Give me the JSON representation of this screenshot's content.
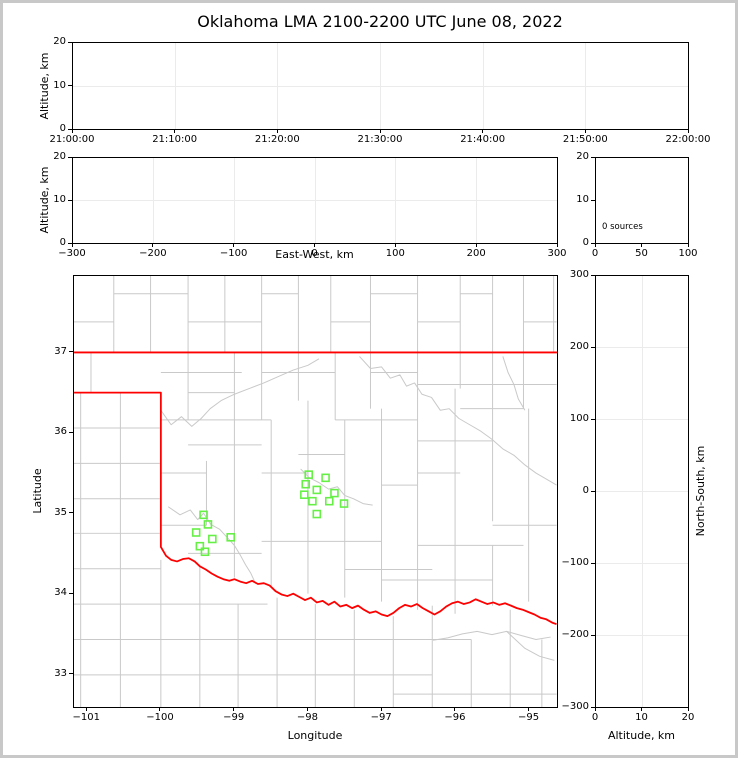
{
  "title": "Oklahoma LMA 2100-2200 UTC June 08, 2022",
  "colors": {
    "figure_frame": "#c8c8c8",
    "axis": "#000000",
    "grid_line": "#ebebeb",
    "county_line": "#c9c9c9",
    "state_border": "#ff0000",
    "station_marker": "#66f046"
  },
  "panels": {
    "time_height": {
      "ylabel": "Altitude, km",
      "ytick_labels": [
        "0",
        "10",
        "20"
      ],
      "xtick_labels": [
        "21:00:00",
        "21:10:00",
        "21:20:00",
        "21:30:00",
        "21:40:00",
        "21:50:00",
        "22:00:00"
      ]
    },
    "ew_height": {
      "ylabel": "Altitude, km",
      "xlabel": "East-West, km",
      "ytick_labels": [
        "0",
        "10",
        "20"
      ],
      "xtick_labels": [
        "−300",
        "−200",
        "−100",
        "0",
        "100",
        "200",
        "300"
      ]
    },
    "histogram": {
      "annotation": "0 sources",
      "ytick_labels": [
        "0",
        "10",
        "20"
      ],
      "xtick_labels": [
        "0",
        "50",
        "100"
      ]
    },
    "plan_view": {
      "xlabel": "Longitude",
      "ylabel": "Latitude",
      "xtick_labels": [
        "−101",
        "−100",
        "−99",
        "−98",
        "−97",
        "−96",
        "−95"
      ],
      "ytick_labels": [
        "33",
        "34",
        "35",
        "36",
        "37"
      ]
    },
    "ns_height": {
      "xlabel": "Altitude, km",
      "right_label": "North-South, km",
      "xtick_labels": [
        "0",
        "10",
        "20"
      ],
      "ytick_labels": [
        "−300",
        "−200",
        "−100",
        "0",
        "100",
        "200",
        "300"
      ]
    }
  },
  "chart_data": [
    {
      "id": "time_height",
      "type": "scatter",
      "title": "Oklahoma LMA 2100-2200 UTC June 08, 2022",
      "ylabel": "Altitude, km",
      "ylim": [
        0,
        20
      ],
      "x_ticks": [
        "21:00:00",
        "21:10:00",
        "21:20:00",
        "21:30:00",
        "21:40:00",
        "21:50:00",
        "22:00:00"
      ],
      "points": []
    },
    {
      "id": "ew_height",
      "type": "scatter",
      "xlabel": "East-West, km",
      "ylabel": "Altitude, km",
      "xlim": [
        -300,
        300
      ],
      "ylim": [
        0,
        20
      ],
      "points": []
    },
    {
      "id": "altitude_histogram",
      "type": "bar",
      "annotation": "0 sources",
      "xlim": [
        0,
        100
      ],
      "ylim": [
        0,
        20
      ],
      "values": []
    },
    {
      "id": "plan_view",
      "type": "scatter",
      "xlabel": "Longitude",
      "ylabel": "Latitude",
      "lon_lim": [
        -101.18,
        -94.615
      ],
      "lat_lim": [
        32.59,
        37.95
      ],
      "stations": [
        [
          -99.42,
          34.98
        ],
        [
          -99.52,
          34.76
        ],
        [
          -99.36,
          34.86
        ],
        [
          -99.3,
          34.68
        ],
        [
          -99.47,
          34.59
        ],
        [
          -99.4,
          34.52
        ],
        [
          -99.05,
          34.7
        ],
        [
          -97.99,
          35.48
        ],
        [
          -97.76,
          35.44
        ],
        [
          -98.03,
          35.36
        ],
        [
          -97.88,
          35.29
        ],
        [
          -97.64,
          35.25
        ],
        [
          -98.05,
          35.23
        ],
        [
          -97.94,
          35.15
        ],
        [
          -97.71,
          35.15
        ],
        [
          -97.51,
          35.12
        ],
        [
          -97.88,
          34.99
        ]
      ],
      "state_border": [
        [
          [
            -101.18,
            37.0
          ],
          [
            -94.615,
            37.0
          ]
        ],
        [
          [
            -101.18,
            36.5
          ],
          [
            -100.0,
            36.5
          ],
          [
            -100.0,
            34.58
          ],
          [
            -99.93,
            34.47
          ],
          [
            -99.86,
            34.42
          ],
          [
            -99.78,
            34.4
          ],
          [
            -99.7,
            34.43
          ],
          [
            -99.62,
            34.44
          ],
          [
            -99.54,
            34.4
          ],
          [
            -99.47,
            34.34
          ],
          [
            -99.39,
            34.3
          ],
          [
            -99.31,
            34.25
          ],
          [
            -99.23,
            34.21
          ],
          [
            -99.15,
            34.18
          ],
          [
            -99.07,
            34.16
          ],
          [
            -99.0,
            34.18
          ],
          [
            -98.92,
            34.15
          ],
          [
            -98.84,
            34.13
          ],
          [
            -98.76,
            34.16
          ],
          [
            -98.68,
            34.12
          ],
          [
            -98.6,
            34.13
          ],
          [
            -98.52,
            34.1
          ],
          [
            -98.44,
            34.03
          ],
          [
            -98.36,
            33.99
          ],
          [
            -98.28,
            33.97
          ],
          [
            -98.2,
            34.0
          ],
          [
            -98.12,
            33.96
          ],
          [
            -98.04,
            33.92
          ],
          [
            -97.96,
            33.95
          ],
          [
            -97.88,
            33.89
          ],
          [
            -97.8,
            33.91
          ],
          [
            -97.72,
            33.86
          ],
          [
            -97.64,
            33.9
          ],
          [
            -97.56,
            33.84
          ],
          [
            -97.48,
            33.86
          ],
          [
            -97.4,
            33.82
          ],
          [
            -97.32,
            33.85
          ],
          [
            -97.24,
            33.8
          ],
          [
            -97.16,
            33.76
          ],
          [
            -97.08,
            33.78
          ],
          [
            -97.0,
            33.74
          ],
          [
            -96.92,
            33.72
          ],
          [
            -96.84,
            33.76
          ],
          [
            -96.76,
            33.82
          ],
          [
            -96.68,
            33.86
          ],
          [
            -96.6,
            33.84
          ],
          [
            -96.52,
            33.87
          ],
          [
            -96.44,
            33.82
          ],
          [
            -96.36,
            33.78
          ],
          [
            -96.28,
            33.74
          ],
          [
            -96.2,
            33.78
          ],
          [
            -96.12,
            33.84
          ],
          [
            -96.04,
            33.88
          ],
          [
            -95.96,
            33.9
          ],
          [
            -95.88,
            33.87
          ],
          [
            -95.8,
            33.89
          ],
          [
            -95.72,
            33.93
          ],
          [
            -95.64,
            33.9
          ],
          [
            -95.56,
            33.87
          ],
          [
            -95.48,
            33.89
          ],
          [
            -95.4,
            33.86
          ],
          [
            -95.32,
            33.88
          ],
          [
            -95.24,
            33.85
          ],
          [
            -95.16,
            33.82
          ],
          [
            -95.08,
            33.8
          ],
          [
            -95.0,
            33.77
          ],
          [
            -94.92,
            33.74
          ],
          [
            -94.84,
            33.7
          ],
          [
            -94.76,
            33.68
          ],
          [
            -94.68,
            33.64
          ],
          [
            -94.62,
            33.62
          ]
        ]
      ],
      "county_v": [
        [
          -100.64,
          37.0,
          37.95
        ],
        [
          -100.14,
          37.0,
          37.95
        ],
        [
          -99.63,
          37.0,
          37.95
        ],
        [
          -99.13,
          37.0,
          37.95
        ],
        [
          -98.63,
          37.0,
          37.95
        ],
        [
          -98.13,
          37.0,
          37.95
        ],
        [
          -97.69,
          37.0,
          37.95
        ],
        [
          -97.15,
          37.0,
          37.95
        ],
        [
          -96.51,
          37.0,
          37.95
        ],
        [
          -95.93,
          37.0,
          37.95
        ],
        [
          -95.49,
          37.0,
          37.95
        ],
        [
          -95.07,
          37.0,
          37.95
        ],
        [
          -94.66,
          37.0,
          37.95
        ],
        [
          -100.95,
          36.5,
          37.0
        ],
        [
          -99.63,
          36.16,
          37.0
        ],
        [
          -99.38,
          34.85,
          35.65
        ],
        [
          -99.0,
          34.2,
          37.0
        ],
        [
          -98.63,
          36.16,
          37.0
        ],
        [
          -98.5,
          34.1,
          36.16
        ],
        [
          -98.13,
          36.4,
          37.0
        ],
        [
          -98.0,
          34.0,
          36.4
        ],
        [
          -97.63,
          36.16,
          37.0
        ],
        [
          -97.5,
          33.95,
          36.16
        ],
        [
          -97.15,
          36.3,
          37.0
        ],
        [
          -97.0,
          33.9,
          36.3
        ],
        [
          -96.51,
          33.8,
          37.0
        ],
        [
          -96.0,
          33.75,
          36.55
        ],
        [
          -95.93,
          36.55,
          37.0
        ],
        [
          -95.49,
          34.9,
          37.0
        ],
        [
          -95.49,
          33.85,
          34.6
        ],
        [
          -95.07,
          36.3,
          37.0
        ],
        [
          -95.0,
          33.9,
          36.3
        ],
        [
          -101.09,
          32.59,
          36.5
        ],
        [
          -100.55,
          32.59,
          36.5
        ],
        [
          -100.0,
          32.59,
          34.42
        ],
        [
          -99.47,
          32.59,
          34.34
        ],
        [
          -98.95,
          32.59,
          33.87
        ],
        [
          -98.42,
          32.59,
          33.95
        ],
        [
          -97.9,
          32.59,
          33.87
        ],
        [
          -97.37,
          32.59,
          33.8
        ],
        [
          -96.84,
          32.59,
          33.72
        ],
        [
          -96.31,
          32.59,
          33.85
        ],
        [
          -95.78,
          32.59,
          33.43
        ],
        [
          -95.25,
          32.59,
          33.8
        ],
        [
          -94.82,
          32.59,
          33.43
        ]
      ],
      "county_h": [
        [
          37.38,
          -101.18,
          -100.64
        ],
        [
          37.38,
          -99.63,
          -98.63
        ],
        [
          37.38,
          -97.69,
          -97.15
        ],
        [
          37.38,
          -96.51,
          -95.93
        ],
        [
          37.38,
          -95.07,
          -94.62
        ],
        [
          37.73,
          -100.64,
          -99.63
        ],
        [
          37.73,
          -98.63,
          -98.13
        ],
        [
          37.73,
          -97.15,
          -96.51
        ],
        [
          37.73,
          -95.93,
          -95.49
        ],
        [
          36.75,
          -100.0,
          -98.9
        ],
        [
          36.75,
          -98.63,
          -97.63
        ],
        [
          36.75,
          -97.15,
          -96.51
        ],
        [
          36.6,
          -96.51,
          -94.62
        ],
        [
          36.5,
          -99.63,
          -99.0
        ],
        [
          36.16,
          -100.0,
          -98.5
        ],
        [
          36.16,
          -97.63,
          -96.51
        ],
        [
          36.3,
          -95.93,
          -95.07
        ],
        [
          35.85,
          -99.63,
          -98.63
        ],
        [
          35.73,
          -98.13,
          -97.5
        ],
        [
          35.9,
          -96.51,
          -95.49
        ],
        [
          35.5,
          -100.0,
          -99.38
        ],
        [
          35.5,
          -98.63,
          -98.0
        ],
        [
          35.5,
          -96.51,
          -95.93
        ],
        [
          35.35,
          -97.0,
          -96.51
        ],
        [
          34.85,
          -100.0,
          -99.38
        ],
        [
          34.65,
          -98.63,
          -97.0
        ],
        [
          34.5,
          -99.63,
          -98.63
        ],
        [
          34.3,
          -97.5,
          -96.31
        ],
        [
          34.17,
          -97.0,
          -95.49
        ],
        [
          34.6,
          -96.51,
          -95.07
        ],
        [
          34.85,
          -95.49,
          -94.62
        ],
        [
          36.06,
          -101.18,
          -100.0
        ],
        [
          35.62,
          -101.18,
          -100.0
        ],
        [
          35.18,
          -101.18,
          -100.0
        ],
        [
          34.75,
          -101.18,
          -100.0
        ],
        [
          34.31,
          -101.18,
          -100.0
        ],
        [
          33.87,
          -101.18,
          -98.55
        ],
        [
          33.43,
          -101.18,
          -95.78
        ],
        [
          32.99,
          -101.18,
          -96.31
        ],
        [
          32.75,
          -96.84,
          -94.62
        ]
      ],
      "rivers": [
        [
          [
            -100.0,
            36.28
          ],
          [
            -99.86,
            36.1
          ],
          [
            -99.72,
            36.2
          ],
          [
            -99.58,
            36.08
          ],
          [
            -99.45,
            36.18
          ],
          [
            -99.33,
            36.3
          ],
          [
            -99.18,
            36.4
          ],
          [
            -99.0,
            36.48
          ],
          [
            -98.8,
            36.55
          ],
          [
            -98.6,
            36.62
          ],
          [
            -98.4,
            36.7
          ],
          [
            -98.2,
            36.78
          ],
          [
            -98.0,
            36.84
          ],
          [
            -97.85,
            36.92
          ]
        ],
        [
          [
            -97.3,
            36.95
          ],
          [
            -97.15,
            36.8
          ],
          [
            -97.0,
            36.82
          ],
          [
            -96.88,
            36.68
          ],
          [
            -96.75,
            36.72
          ],
          [
            -96.66,
            36.58
          ],
          [
            -96.55,
            36.62
          ],
          [
            -96.45,
            36.48
          ],
          [
            -96.32,
            36.44
          ],
          [
            -96.2,
            36.28
          ],
          [
            -96.08,
            36.3
          ],
          [
            -95.95,
            36.18
          ],
          [
            -95.8,
            36.1
          ],
          [
            -95.65,
            36.02
          ],
          [
            -95.5,
            35.92
          ],
          [
            -95.35,
            35.8
          ],
          [
            -95.2,
            35.72
          ],
          [
            -95.05,
            35.6
          ],
          [
            -94.9,
            35.5
          ],
          [
            -94.75,
            35.42
          ],
          [
            -94.62,
            35.35
          ]
        ],
        [
          [
            -99.9,
            35.08
          ],
          [
            -99.74,
            34.98
          ],
          [
            -99.6,
            35.04
          ],
          [
            -99.5,
            34.92
          ],
          [
            -99.42,
            35.0
          ],
          [
            -99.32,
            34.86
          ],
          [
            -99.2,
            34.8
          ],
          [
            -99.1,
            34.7
          ],
          [
            -99.0,
            34.6
          ],
          [
            -98.92,
            34.48
          ],
          [
            -98.85,
            34.36
          ],
          [
            -98.78,
            34.26
          ],
          [
            -98.72,
            34.14
          ]
        ],
        [
          [
            -98.1,
            35.55
          ],
          [
            -97.98,
            35.44
          ],
          [
            -97.85,
            35.38
          ],
          [
            -97.72,
            35.3
          ],
          [
            -97.6,
            35.33
          ],
          [
            -97.5,
            35.22
          ],
          [
            -97.38,
            35.18
          ],
          [
            -97.25,
            35.12
          ],
          [
            -97.12,
            35.1
          ]
        ],
        [
          [
            -96.3,
            33.42
          ],
          [
            -96.1,
            33.45
          ],
          [
            -95.9,
            33.5
          ],
          [
            -95.7,
            33.53
          ],
          [
            -95.5,
            33.49
          ],
          [
            -95.3,
            33.53
          ],
          [
            -95.1,
            33.48
          ],
          [
            -94.9,
            33.43
          ],
          [
            -94.7,
            33.46
          ]
        ],
        [
          [
            -95.3,
            33.53
          ],
          [
            -95.05,
            33.32
          ],
          [
            -94.85,
            33.22
          ],
          [
            -94.65,
            33.17
          ]
        ],
        [
          [
            -95.35,
            36.95
          ],
          [
            -95.28,
            36.75
          ],
          [
            -95.2,
            36.6
          ],
          [
            -95.14,
            36.42
          ],
          [
            -95.05,
            36.28
          ]
        ]
      ]
    },
    {
      "id": "ns_height",
      "type": "scatter",
      "xlabel": "Altitude, km",
      "ylabel": "North-South, km",
      "xlim": [
        0,
        20
      ],
      "ylim": [
        -300,
        300
      ],
      "points": []
    }
  ]
}
